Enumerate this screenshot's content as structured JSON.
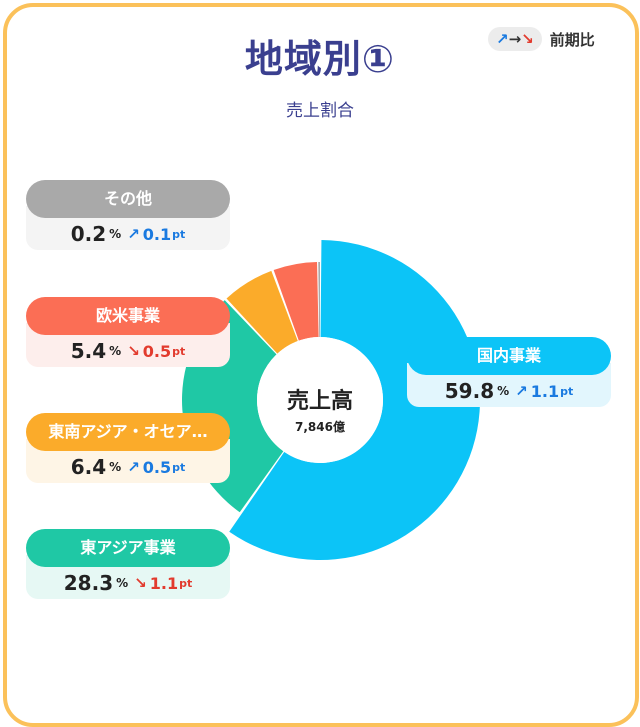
{
  "title": "地域別①",
  "subtitle": "売上割合",
  "legend": {
    "up": "↗",
    "flat": "→",
    "down": "↘",
    "label": "前期比"
  },
  "center": {
    "label": "売上高",
    "total": "7,846億"
  },
  "colors": {
    "frame": "#fbc15a",
    "up": "#1a7ae0",
    "down": "#e23b2e"
  },
  "chart_data": {
    "type": "pie",
    "title": "地域別①",
    "subtitle": "売上割合",
    "donut": true,
    "unit": "%",
    "change_unit": "pt",
    "categories": [
      "国内事業",
      "東アジア事業",
      "東南アジア・オセア…",
      "欧米事業",
      "その他"
    ],
    "values": [
      59.8,
      28.3,
      6.4,
      5.4,
      0.2
    ],
    "changes": [
      1.1,
      -1.1,
      0.5,
      -0.5,
      0.1
    ],
    "colors": [
      "#0cc4f7",
      "#1fc8a5",
      "#fbab2a",
      "#fb6e55",
      "#aaaaaa"
    ],
    "center_label": "売上高",
    "center_value": "7,846億"
  },
  "cards": [
    {
      "label": "その他",
      "value": "0.2",
      "pct": "%",
      "arrow": "↗",
      "change": "0.1",
      "unit": "pt",
      "dir": "up",
      "header_color": "#a9a9a9",
      "body_color": "#f4f4f4"
    },
    {
      "label": "欧米事業",
      "value": "5.4",
      "pct": "%",
      "arrow": "↘",
      "change": "0.5",
      "unit": "pt",
      "dir": "down",
      "header_color": "#fb6e55",
      "body_color": "#fdeeec"
    },
    {
      "label": "東南アジア・オセア…",
      "value": "6.4",
      "pct": "%",
      "arrow": "↗",
      "change": "0.5",
      "unit": "pt",
      "dir": "up",
      "header_color": "#fbab2a",
      "body_color": "#fef5e6"
    },
    {
      "label": "東アジア事業",
      "value": "28.3",
      "pct": "%",
      "arrow": "↘",
      "change": "1.1",
      "unit": "pt",
      "dir": "down",
      "header_color": "#1fc8a5",
      "body_color": "#e6f8f4"
    },
    {
      "label": "国内事業",
      "value": "59.8",
      "pct": "%",
      "arrow": "↗",
      "change": "1.1",
      "unit": "pt",
      "dir": "up",
      "header_color": "#0cc4f7",
      "body_color": "#e2f6fd"
    }
  ]
}
